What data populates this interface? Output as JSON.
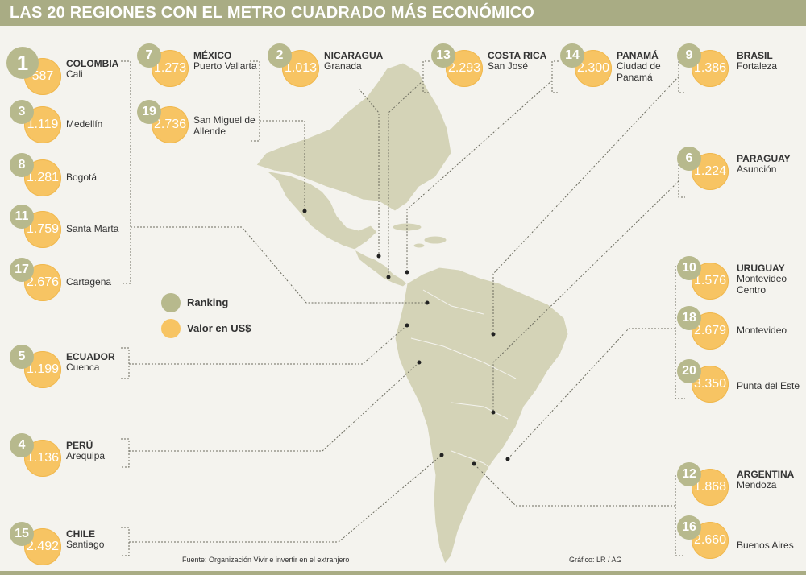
{
  "title": "LAS 20 REGIONES CON EL METRO CUADRADO MÁS ECONÓMICO",
  "legend": {
    "ranking": "Ranking",
    "value": "Valor en US$"
  },
  "source": "Fuente: Organización Vivir e invertir en el extranjero",
  "credit": "Gráfico: LR / AG",
  "colors": {
    "rank": "#b7b98d",
    "value": "#f7c463",
    "map": "#d4d3b7",
    "bar": "#a9ac84"
  },
  "entries": [
    {
      "rank": "1",
      "value": "587",
      "country": "COLOMBIA",
      "city": "Cali"
    },
    {
      "rank": "3",
      "value": "1.119",
      "country": "",
      "city": "Medellín"
    },
    {
      "rank": "8",
      "value": "1.281",
      "country": "",
      "city": "Bogotá"
    },
    {
      "rank": "11",
      "value": "1.759",
      "country": "",
      "city": "Santa Marta"
    },
    {
      "rank": "17",
      "value": "2.676",
      "country": "",
      "city": "Cartagena"
    },
    {
      "rank": "5",
      "value": "1.199",
      "country": "ECUADOR",
      "city": "Cuenca"
    },
    {
      "rank": "4",
      "value": "1.136",
      "country": "PERÚ",
      "city": "Arequipa"
    },
    {
      "rank": "15",
      "value": "2.492",
      "country": "CHILE",
      "city": "Santiago"
    },
    {
      "rank": "7",
      "value": "1.273",
      "country": "MÉXICO",
      "city": "Puerto Vallarta"
    },
    {
      "rank": "19",
      "value": "2.736",
      "country": "",
      "city": "San Miguel de Allende"
    },
    {
      "rank": "2",
      "value": "1.013",
      "country": "NICARAGUA",
      "city": "Granada"
    },
    {
      "rank": "13",
      "value": "2.293",
      "country": "COSTA RICA",
      "city": "San José"
    },
    {
      "rank": "14",
      "value": "2.300",
      "country": "PANAMÁ",
      "city": "Ciudad de Panamá"
    },
    {
      "rank": "9",
      "value": "1.386",
      "country": "BRASIL",
      "city": "Fortaleza"
    },
    {
      "rank": "6",
      "value": "1.224",
      "country": "PARAGUAY",
      "city": "Asunción"
    },
    {
      "rank": "10",
      "value": "1.576",
      "country": "URUGUAY",
      "city": "Montevideo Centro"
    },
    {
      "rank": "18",
      "value": "2.679",
      "country": "",
      "city": "Montevideo"
    },
    {
      "rank": "20",
      "value": "3.350",
      "country": "",
      "city": "Punta del Este"
    },
    {
      "rank": "12",
      "value": "1.868",
      "country": "ARGENTINA",
      "city": "Mendoza"
    },
    {
      "rank": "16",
      "value": "2.660",
      "country": "",
      "city": "Buenos Aires"
    }
  ]
}
